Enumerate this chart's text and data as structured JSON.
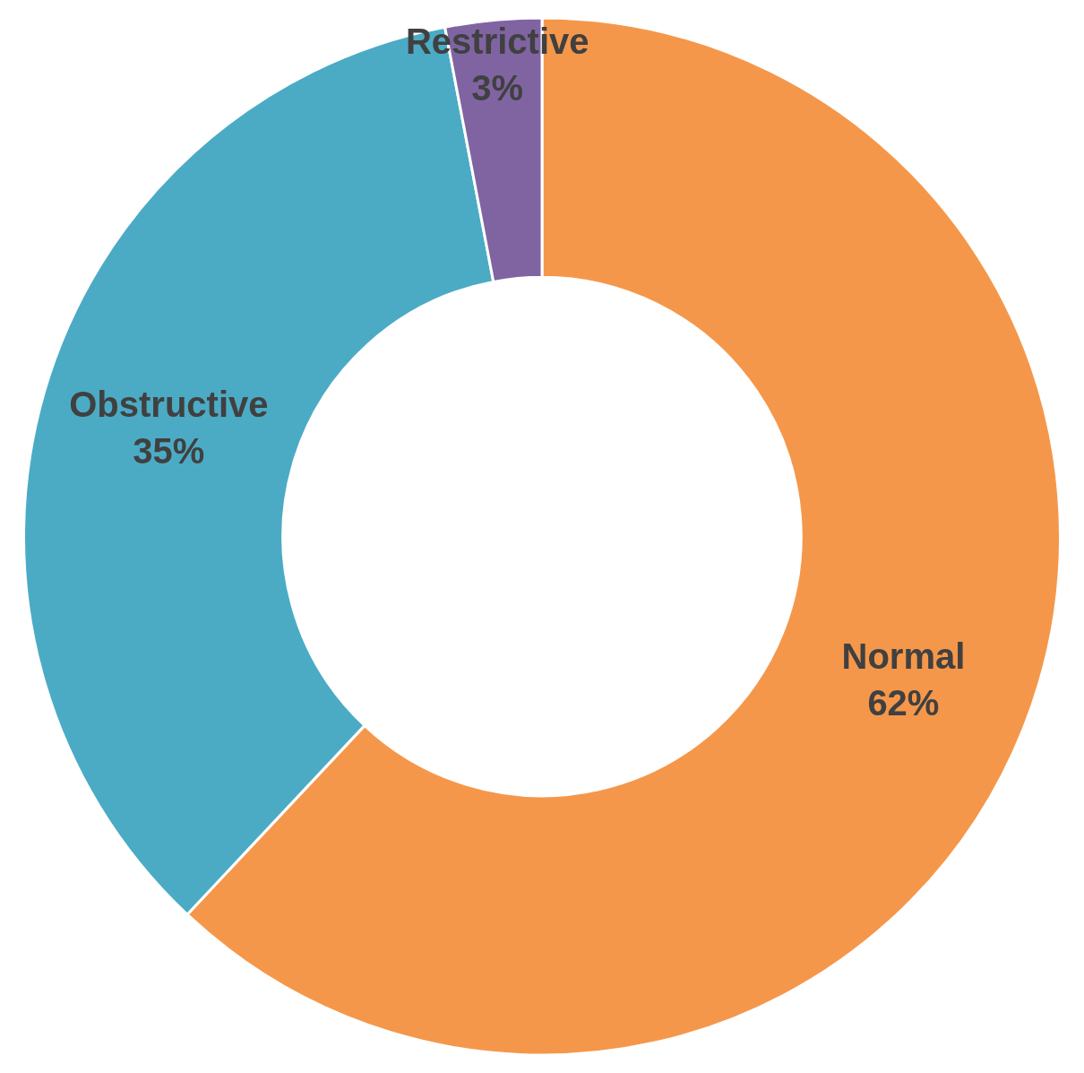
{
  "chart_data": {
    "type": "donut",
    "categories": [
      "Normal",
      "Obstructive",
      "Restrictive"
    ],
    "values": [
      62,
      35,
      3
    ],
    "value_labels": [
      "62%",
      "35%",
      "3%"
    ],
    "colors": [
      "#f5974a",
      "#4babc5",
      "#8064a2"
    ],
    "legend": false
  }
}
